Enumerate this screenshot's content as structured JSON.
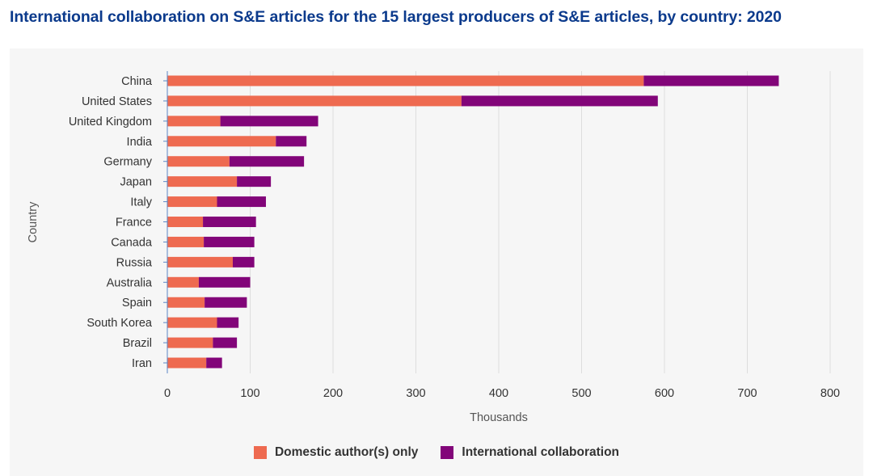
{
  "title": "International collaboration on S&E articles for the 15 largest producers of S&E articles, by country: 2020",
  "colors": {
    "domestic": "#EE6A50",
    "international": "#820579",
    "grid": "#dddddd",
    "axis": "#5b86c5",
    "panel": "#f6f6f6"
  },
  "chart_data": {
    "type": "bar",
    "orientation": "horizontal",
    "stacked": true,
    "xlabel": "Thousands",
    "ylabel": "Country",
    "xlim": [
      0,
      800
    ],
    "xticks": [
      "0",
      "100",
      "200",
      "300",
      "400",
      "500",
      "600",
      "700",
      "800"
    ],
    "grid": "vertical",
    "legend_position": "bottom",
    "categories": [
      "China",
      "United States",
      "United Kingdom",
      "India",
      "Germany",
      "Japan",
      "Italy",
      "France",
      "Canada",
      "Russia",
      "Australia",
      "Spain",
      "South Korea",
      "Brazil",
      "Iran"
    ],
    "series": [
      {
        "name": "Domestic author(s) only",
        "values": [
          575,
          355,
          64,
          131,
          75,
          84,
          60,
          43,
          44,
          79,
          38,
          45,
          60,
          55,
          47
        ]
      },
      {
        "name": "International collaboration",
        "values": [
          163,
          237,
          118,
          37,
          90,
          41,
          59,
          64,
          61,
          26,
          62,
          51,
          26,
          29,
          19
        ]
      }
    ]
  }
}
